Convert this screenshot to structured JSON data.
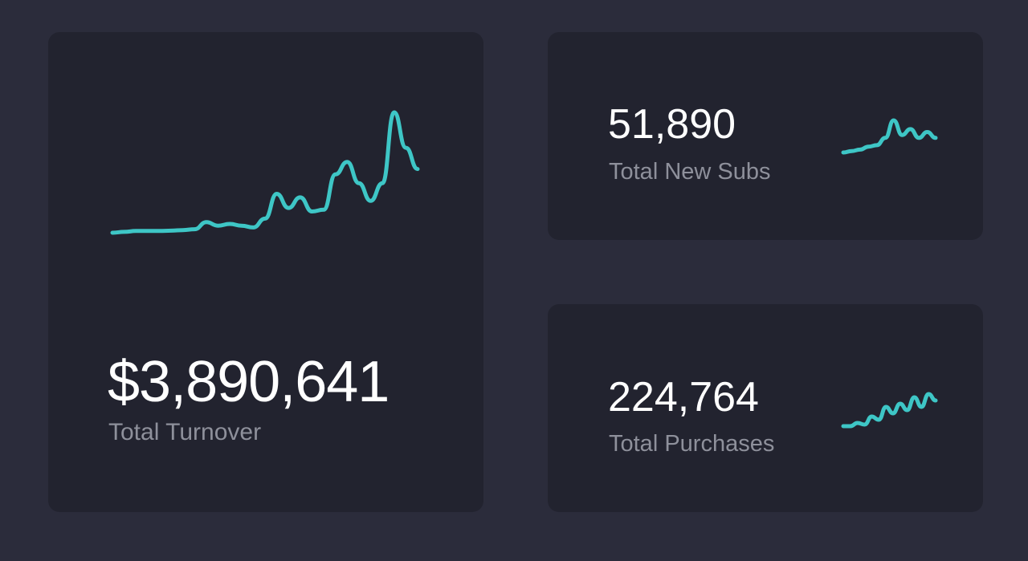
{
  "colors": {
    "background": "#2b2c3b",
    "card": "#22232f",
    "accent": "#3ec6c6",
    "value_text": "#ffffff",
    "label_text": "#8e909b"
  },
  "cards": {
    "turnover": {
      "value": "$3,890,641",
      "label": "Total Turnover",
      "trend": [
        2,
        2.5,
        3,
        3,
        3,
        3.2,
        3.5,
        4,
        8,
        6,
        7,
        6,
        5,
        10,
        24,
        16,
        22,
        14,
        15,
        35,
        42,
        30,
        20,
        30,
        70,
        50,
        38
      ]
    },
    "new_subs": {
      "value": "51,890",
      "label": "Total New Subs",
      "trend": [
        1,
        1.5,
        2,
        3,
        3.5,
        6,
        12,
        7,
        9,
        6,
        8,
        6
      ]
    },
    "purchases": {
      "value": "224,764",
      "label": "Total Purchases",
      "trend": [
        1,
        1,
        2,
        1.5,
        4,
        3,
        7,
        5,
        8,
        6,
        10,
        7,
        11,
        9
      ]
    }
  }
}
